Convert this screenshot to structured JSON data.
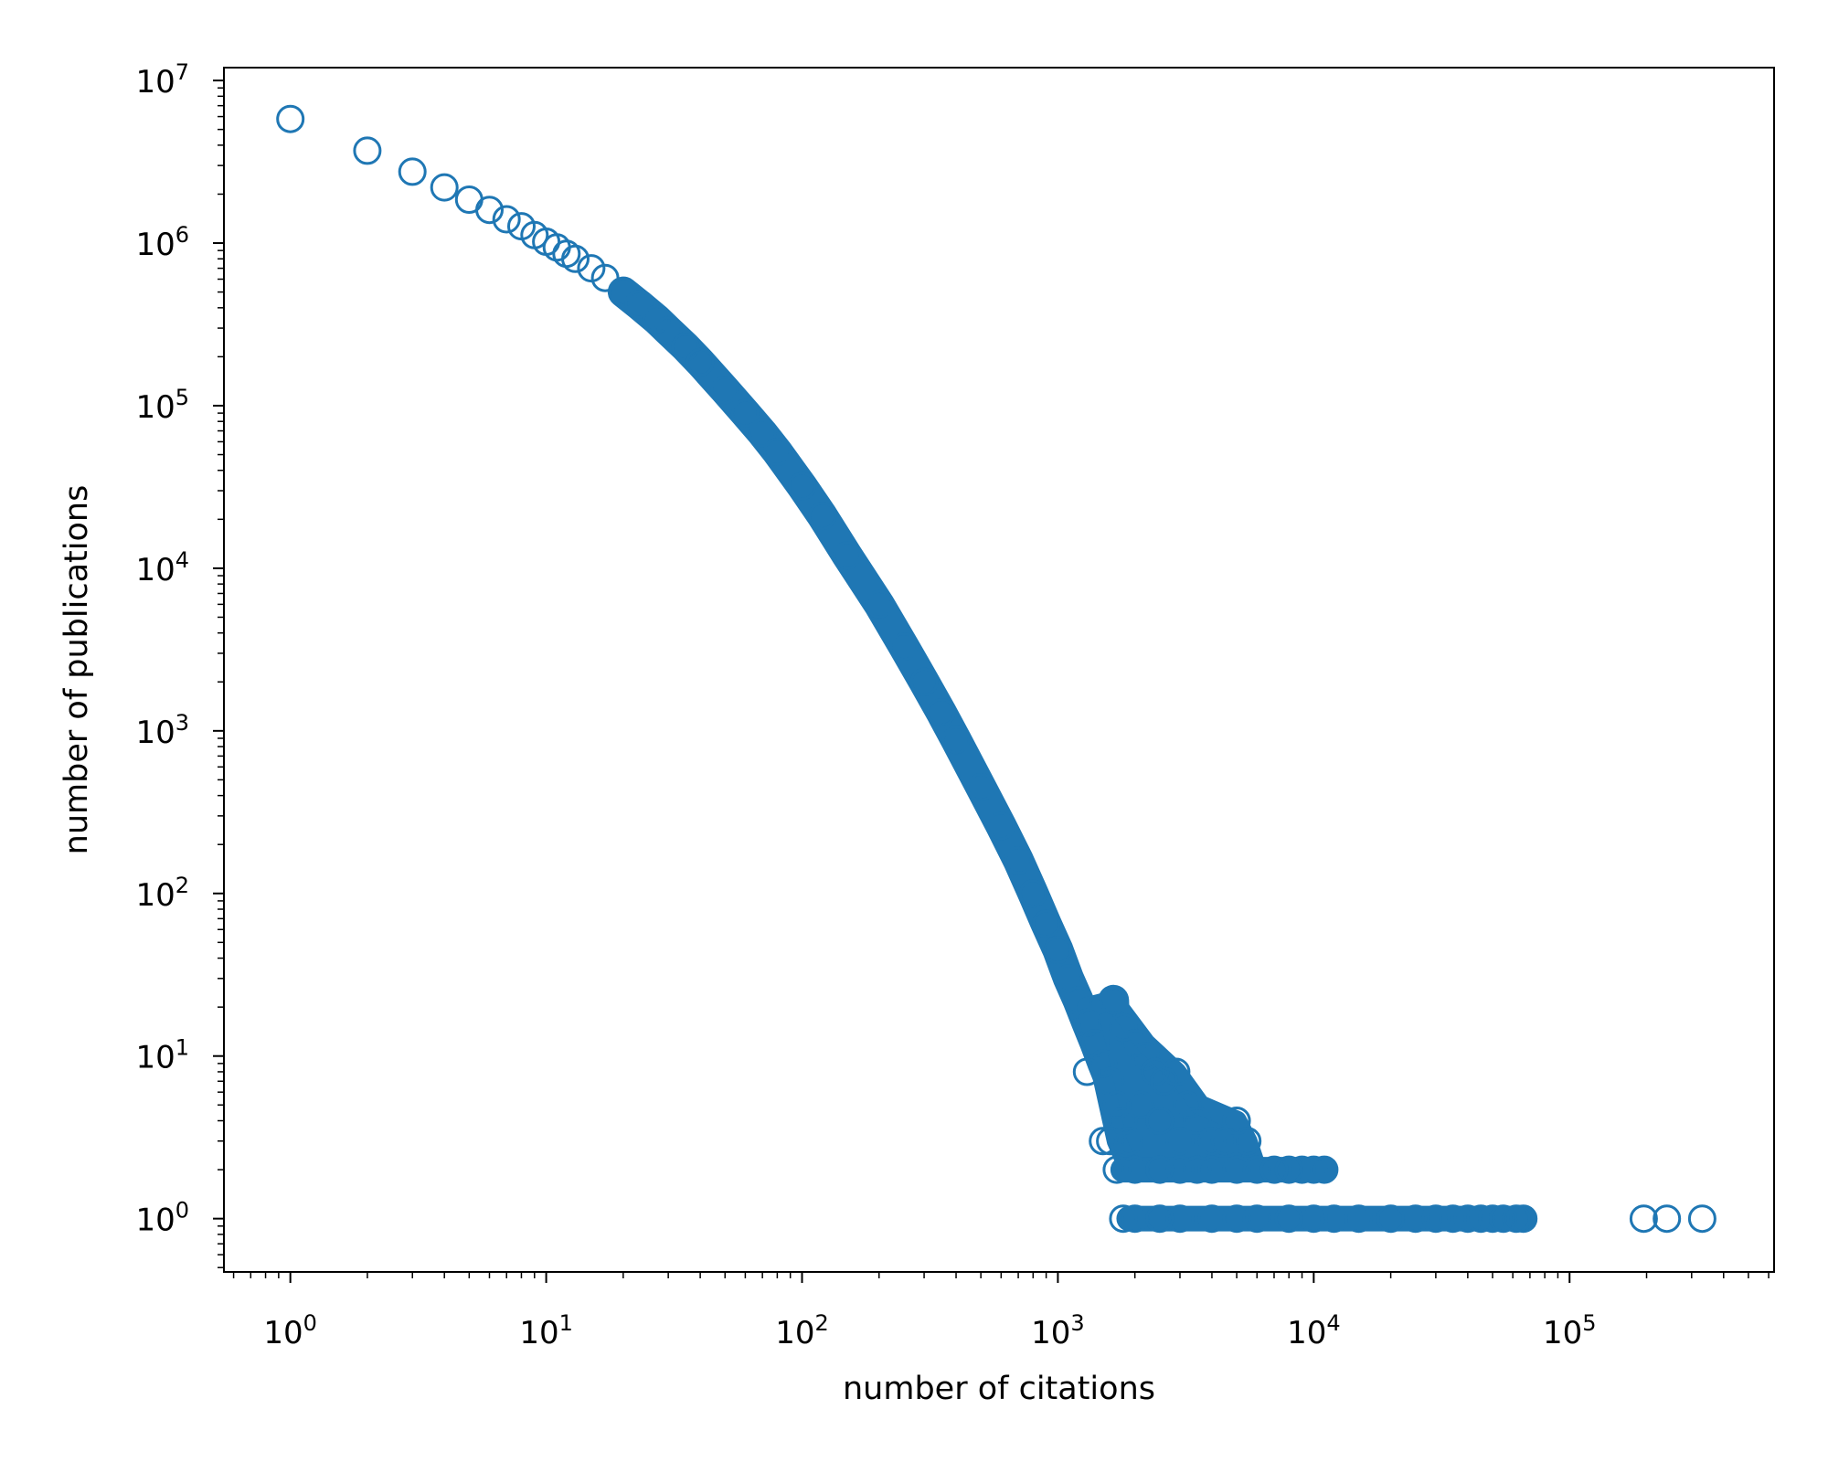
{
  "chart_data": {
    "type": "scatter",
    "title": "",
    "xlabel": "number of citations",
    "ylabel": "number of publications",
    "xscale": "log",
    "yscale": "log",
    "xlim": [
      0.55,
      630000
    ],
    "ylim": [
      0.47,
      12000000
    ],
    "grid": false,
    "legend": "none",
    "marker": "hollow-circle",
    "color": "#1f77b4",
    "x_ticks": [
      {
        "base": "10",
        "exp": "0"
      },
      {
        "base": "10",
        "exp": "1"
      },
      {
        "base": "10",
        "exp": "2"
      },
      {
        "base": "10",
        "exp": "3"
      },
      {
        "base": "10",
        "exp": "4"
      },
      {
        "base": "10",
        "exp": "5"
      }
    ],
    "y_ticks": [
      {
        "base": "10",
        "exp": "0"
      },
      {
        "base": "10",
        "exp": "1"
      },
      {
        "base": "10",
        "exp": "2"
      },
      {
        "base": "10",
        "exp": "3"
      },
      {
        "base": "10",
        "exp": "4"
      },
      {
        "base": "10",
        "exp": "5"
      },
      {
        "base": "10",
        "exp": "6"
      },
      {
        "base": "10",
        "exp": "7"
      }
    ],
    "series": [
      {
        "values": [
          [
            1,
            5800000
          ],
          [
            2,
            3700000
          ],
          [
            3,
            2750000
          ],
          [
            4,
            2200000
          ],
          [
            5,
            1850000
          ],
          [
            6,
            1600000
          ],
          [
            7,
            1400000
          ],
          [
            8,
            1270000
          ],
          [
            9,
            1120000
          ],
          [
            10,
            1020000
          ],
          [
            11,
            940000
          ],
          [
            12,
            860000
          ],
          [
            13,
            800000
          ],
          [
            15,
            700000
          ],
          [
            17,
            610000
          ],
          [
            20,
            500000
          ],
          [
            23,
            420000
          ],
          [
            27,
            340000
          ],
          [
            30,
            290000
          ],
          [
            35,
            230000
          ],
          [
            40,
            185000
          ],
          [
            50,
            125000
          ],
          [
            60,
            90000
          ],
          [
            70,
            68000
          ],
          [
            80,
            52000
          ],
          [
            100,
            32000
          ],
          [
            120,
            21000
          ],
          [
            150,
            12000
          ],
          [
            200,
            6000
          ],
          [
            250,
            3300
          ],
          [
            300,
            2000
          ],
          [
            350,
            1300
          ],
          [
            400,
            880
          ],
          [
            500,
            450
          ],
          [
            600,
            260
          ],
          [
            700,
            160
          ],
          [
            800,
            100
          ],
          [
            900,
            65
          ],
          [
            1000,
            45
          ],
          [
            1100,
            30
          ],
          [
            1200,
            22
          ],
          [
            1300,
            16
          ],
          [
            1400,
            12
          ],
          [
            1500,
            9
          ],
          [
            1600,
            7
          ],
          [
            1700,
            5
          ],
          [
            1800,
            4
          ],
          [
            1900,
            3
          ],
          [
            1300,
            8
          ],
          [
            1650,
            22
          ],
          [
            1800,
            15
          ],
          [
            2000,
            12
          ],
          [
            2200,
            10
          ],
          [
            2400,
            8
          ],
          [
            2600,
            7
          ],
          [
            2900,
            8
          ],
          [
            3200,
            5
          ],
          [
            3500,
            4
          ],
          [
            4000,
            3
          ],
          [
            4500,
            3
          ],
          [
            5000,
            4
          ],
          [
            5500,
            3
          ],
          [
            2100,
            5
          ],
          [
            2500,
            4
          ],
          [
            3000,
            3
          ],
          [
            1500,
            3
          ],
          [
            1600,
            3
          ],
          [
            1700,
            2
          ],
          [
            2000,
            2
          ],
          [
            2500,
            2
          ],
          [
            3000,
            2
          ],
          [
            3500,
            2
          ],
          [
            4000,
            2
          ],
          [
            5000,
            2
          ],
          [
            6000,
            2
          ],
          [
            7000,
            2
          ],
          [
            8000,
            2
          ],
          [
            9000,
            2
          ],
          [
            10000,
            2
          ],
          [
            11000,
            2
          ],
          [
            1800,
            1
          ],
          [
            2000,
            1
          ],
          [
            2500,
            1
          ],
          [
            3000,
            1
          ],
          [
            4000,
            1
          ],
          [
            5000,
            1
          ],
          [
            6000,
            1
          ],
          [
            8000,
            1
          ],
          [
            10000,
            1
          ],
          [
            12000,
            1
          ],
          [
            15000,
            1
          ],
          [
            20000,
            1
          ],
          [
            25000,
            1
          ],
          [
            30000,
            1
          ],
          [
            35000,
            1
          ],
          [
            40000,
            1
          ],
          [
            45000,
            1
          ],
          [
            50000,
            1
          ],
          [
            55000,
            1
          ],
          [
            62000,
            1
          ],
          [
            66000,
            1
          ],
          [
            195000,
            1
          ],
          [
            240000,
            1
          ],
          [
            330000,
            1
          ]
        ]
      }
    ]
  }
}
